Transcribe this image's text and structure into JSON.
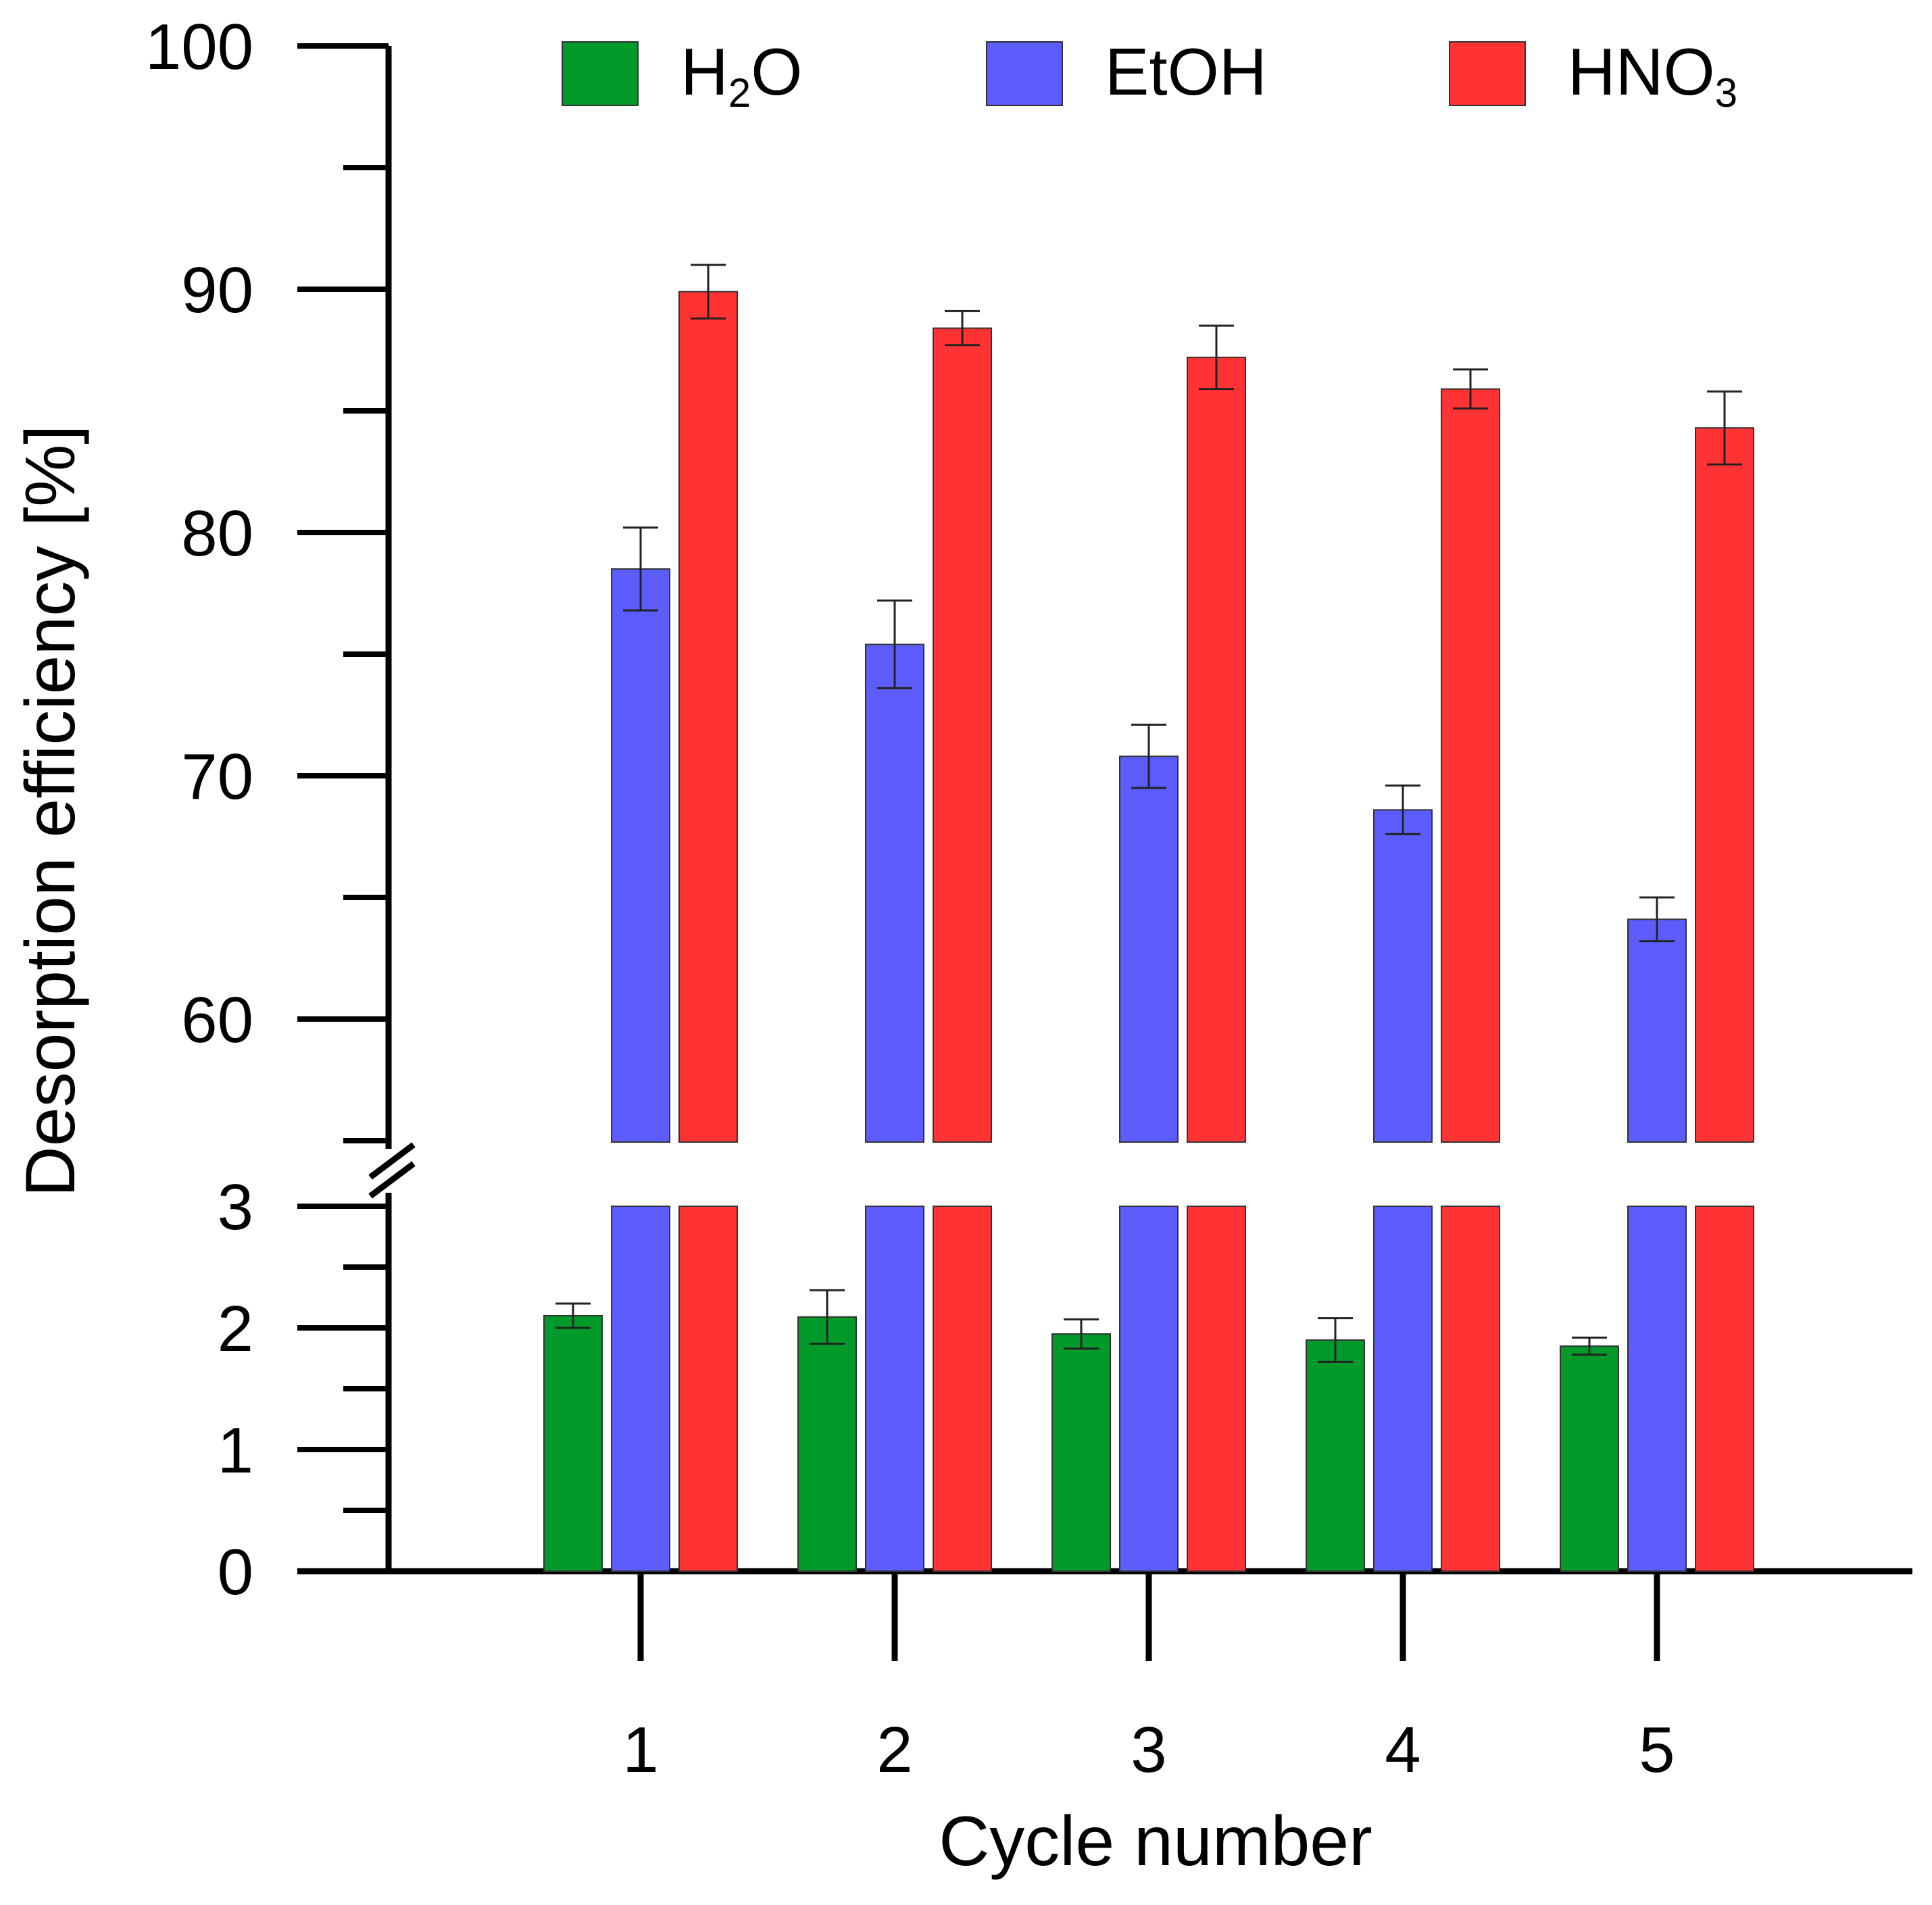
{
  "chart_data": {
    "type": "bar",
    "title": "",
    "xlabel": "Cycle number",
    "ylabel": "Desorption efficiency [%]",
    "categories": [
      "1",
      "2",
      "3",
      "4",
      "5"
    ],
    "axis_break": {
      "lower": [
        0,
        3
      ],
      "upper": [
        55,
        100
      ]
    },
    "ylim": [
      0,
      100
    ],
    "yticks_lower": [
      "0",
      "1",
      "2",
      "3"
    ],
    "yticks_upper": [
      "60",
      "70",
      "80",
      "90",
      "100"
    ],
    "legend_position": "top",
    "series": [
      {
        "name": "H2O",
        "label_main": "H",
        "label_sub": "2",
        "label_tail": "O",
        "color": "#009a2a",
        "values": [
          2.1,
          2.09,
          1.95,
          1.9,
          1.85
        ],
        "errors": [
          0.1,
          0.22,
          0.12,
          0.18,
          0.07
        ]
      },
      {
        "name": "EtOH",
        "label_main": "EtOH",
        "label_sub": "",
        "label_tail": "",
        "color": "#5d5dfe",
        "values": [
          78.5,
          75.4,
          70.8,
          68.6,
          64.1
        ],
        "errors": [
          1.7,
          1.8,
          1.3,
          1.0,
          0.9
        ]
      },
      {
        "name": "HNO3",
        "label_main": "HNO",
        "label_sub": "3",
        "label_tail": "",
        "color": "#ff3333",
        "values": [
          89.9,
          88.4,
          87.2,
          85.9,
          84.3
        ],
        "errors": [
          1.1,
          0.7,
          1.3,
          0.8,
          1.5
        ]
      }
    ]
  }
}
